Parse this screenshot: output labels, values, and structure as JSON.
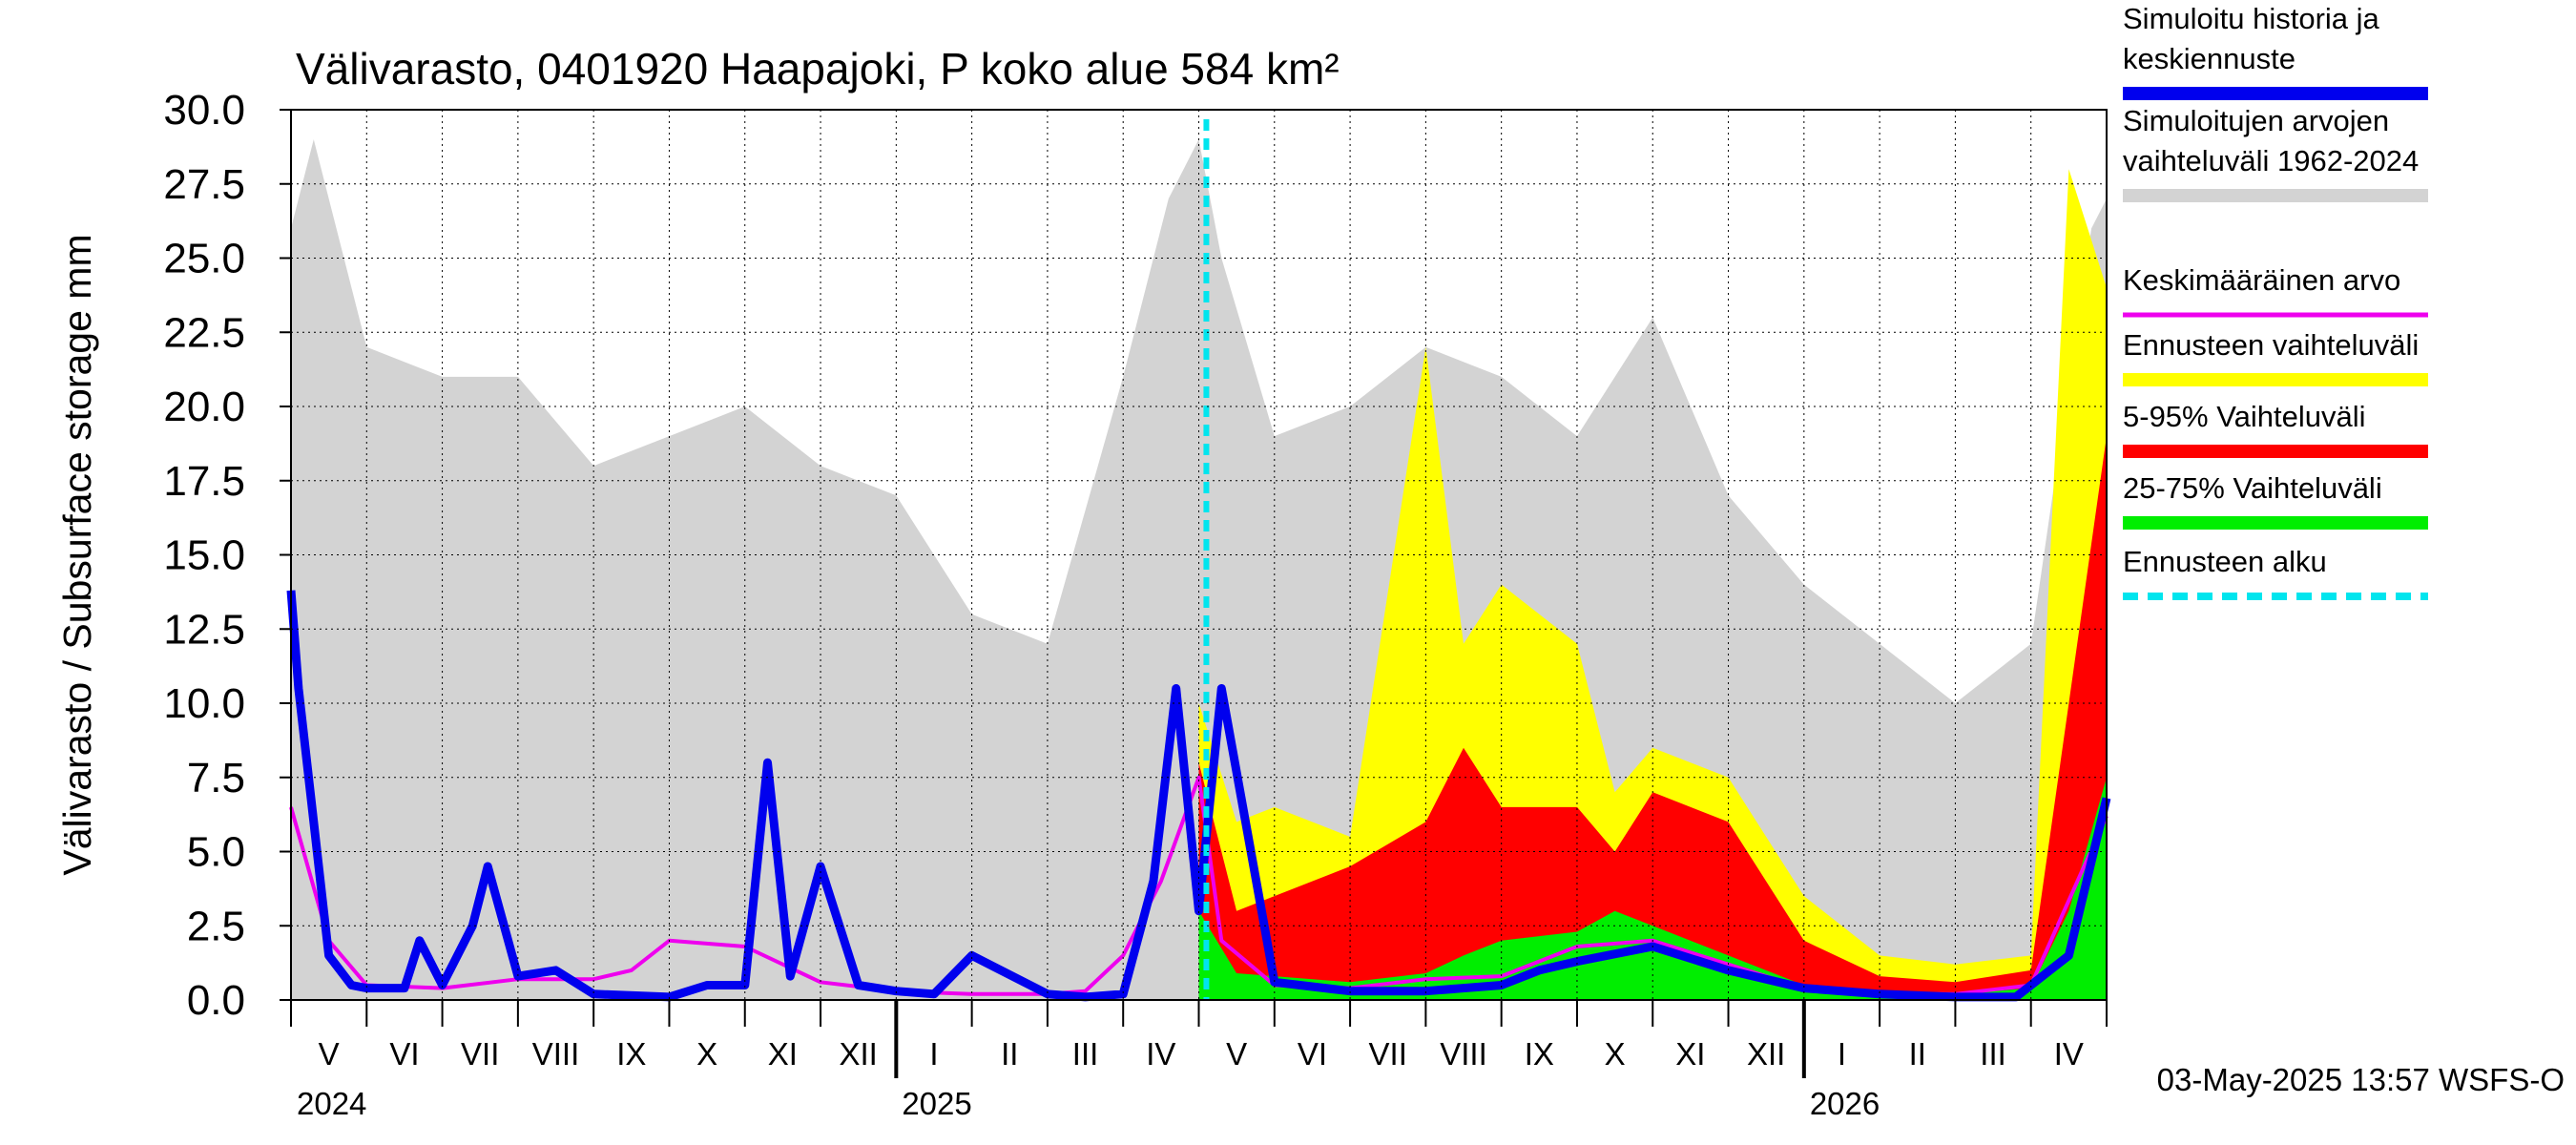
{
  "chart_data": {
    "type": "area",
    "title": "Välivarasto, 0401920 Haapajoki, P koko alue 584 km²",
    "ylabel": "Välivarasto / Subsurface storage  mm",
    "ylim": [
      0,
      30
    ],
    "yticks": [
      "0.0",
      "2.5",
      "5.0",
      "7.5",
      "10.0",
      "12.5",
      "15.0",
      "17.5",
      "20.0",
      "22.5",
      "25.0",
      "27.5",
      "30.0"
    ],
    "month_labels": [
      "V",
      "VI",
      "VII",
      "VIII",
      "IX",
      "X",
      "XI",
      "XII",
      "I",
      "II",
      "III",
      "IV",
      "V",
      "VI",
      "VII",
      "VIII",
      "IX",
      "X",
      "XI",
      "XII",
      "I",
      "II",
      "III",
      "IV"
    ],
    "year_labels": [
      "2024",
      "2025",
      "2026"
    ],
    "forecast_start_month_index": 12.1,
    "legend": [
      {
        "label": "Simuloitu historia ja keskiennuste",
        "color": "#0000ee"
      },
      {
        "label": "Simuloitujen arvojen vaihteluväli 1962-2024",
        "color": "#d3d3d3"
      },
      {
        "label": "Keskimääräinen arvo",
        "color": "#ee00ee"
      },
      {
        "label": "Ennusteen vaihteluväli",
        "color": "#ffff00"
      },
      {
        "label": "5-95% Vaihteluväli",
        "color": "#ff0000"
      },
      {
        "label": "25-75% Vaihteluväli",
        "color": "#00ee00"
      },
      {
        "label": "Ennusteen alku",
        "color": "#00e5ee"
      }
    ],
    "series": [
      {
        "name": "Simuloitujen arvojen vaihteluväli 1962-2024",
        "x": [
          0.0,
          0.3,
          1.0,
          2.0,
          3.0,
          4.0,
          5.0,
          6.0,
          7.0,
          8.0,
          9.0,
          10.0,
          11.0,
          11.6,
          12.0,
          12.3,
          13.0,
          14.0,
          15.0,
          16.0,
          17.0,
          18.0,
          19.0,
          20.0,
          21.0,
          22.0,
          23.0,
          23.8,
          24.0
        ],
        "values": [
          26,
          29,
          22,
          21,
          21,
          18,
          19,
          20,
          18,
          17,
          13,
          12,
          21,
          27,
          29,
          25,
          19,
          20,
          22,
          21,
          19,
          23,
          17,
          14,
          12,
          10,
          12,
          26,
          27
        ]
      },
      {
        "name": "Simuloitu historia ja keskiennuste",
        "x": [
          0.0,
          0.1,
          0.3,
          0.5,
          0.8,
          1.0,
          1.5,
          1.7,
          2.0,
          2.4,
          2.6,
          3.0,
          3.5,
          4.0,
          5.0,
          5.5,
          6.0,
          6.3,
          6.6,
          7.0,
          7.5,
          8.0,
          8.5,
          9.0,
          10.0,
          10.5,
          11.0,
          11.4,
          11.7,
          12.0,
          12.3,
          13.0,
          14.0,
          15.0,
          16.0,
          16.5,
          17.0,
          18.0,
          19.0,
          20.0,
          21.0,
          22.0,
          22.8,
          23.5,
          24.0
        ],
        "values": [
          13.8,
          10.5,
          6.0,
          1.5,
          0.5,
          0.4,
          0.4,
          2.0,
          0.5,
          2.5,
          4.5,
          0.8,
          1.0,
          0.2,
          0.1,
          0.5,
          0.5,
          8.0,
          0.8,
          4.5,
          0.5,
          0.3,
          0.2,
          1.5,
          0.2,
          0.1,
          0.2,
          4.0,
          10.5,
          3.0,
          10.5,
          0.6,
          0.3,
          0.3,
          0.5,
          1.0,
          1.3,
          1.8,
          1.0,
          0.4,
          0.2,
          0.1,
          0.1,
          1.5,
          6.8
        ]
      },
      {
        "name": "Keskimääräinen arvo",
        "x": [
          0.0,
          0.5,
          1.0,
          2.0,
          3.0,
          4.0,
          4.5,
          5.0,
          6.0,
          7.0,
          8.0,
          9.0,
          10.0,
          10.5,
          11.0,
          11.5,
          12.0,
          12.3,
          13.0,
          14.0,
          15.0,
          16.0,
          17.0,
          18.0,
          19.0,
          20.0,
          21.0,
          22.0,
          23.0,
          24.0
        ],
        "values": [
          6.5,
          2.0,
          0.5,
          0.4,
          0.7,
          0.7,
          1.0,
          2.0,
          1.8,
          0.6,
          0.3,
          0.2,
          0.2,
          0.3,
          1.5,
          4.0,
          7.5,
          2.0,
          0.5,
          0.4,
          0.7,
          0.8,
          1.8,
          2.0,
          1.2,
          0.4,
          0.2,
          0.2,
          0.5,
          6.2
        ]
      },
      {
        "name": "Ennusteen vaihteluväli",
        "x": [
          12.0,
          12.5,
          13.0,
          14.0,
          15.0,
          15.5,
          16.0,
          17.0,
          17.5,
          18.0,
          19.0,
          20.0,
          21.0,
          22.0,
          23.0,
          23.5,
          24.0
        ],
        "values": [
          10,
          6.0,
          6.5,
          5.5,
          22.0,
          12.0,
          14.0,
          12.0,
          7.0,
          8.5,
          7.5,
          3.5,
          1.5,
          1.2,
          1.5,
          28.0,
          24.0
        ]
      },
      {
        "name": "5-95% Vaihteluväli",
        "x": [
          12.0,
          12.5,
          13.0,
          14.0,
          15.0,
          15.5,
          16.0,
          17.0,
          17.5,
          18.0,
          19.0,
          20.0,
          21.0,
          22.0,
          23.0,
          23.5,
          24.0
        ],
        "values": [
          8,
          3.0,
          3.5,
          4.5,
          6.0,
          8.5,
          6.5,
          6.5,
          5.0,
          7.0,
          6.0,
          2.0,
          0.8,
          0.6,
          1.0,
          10.0,
          19.0
        ]
      },
      {
        "name": "25-75% Vaihteluväli",
        "x": [
          12.0,
          12.5,
          13.0,
          14.0,
          15.0,
          15.5,
          16.0,
          17.0,
          17.5,
          18.0,
          19.0,
          20.0,
          21.0,
          22.0,
          23.0,
          23.5,
          24.0
        ],
        "values": [
          3,
          0.9,
          0.8,
          0.6,
          0.9,
          1.5,
          2.0,
          2.3,
          3.0,
          2.5,
          1.5,
          0.5,
          0.3,
          0.2,
          0.4,
          3.0,
          7.5
        ]
      }
    ],
    "grid": true,
    "legend_position": "right",
    "footer": "03-May-2025 13:57 WSFS-O"
  }
}
